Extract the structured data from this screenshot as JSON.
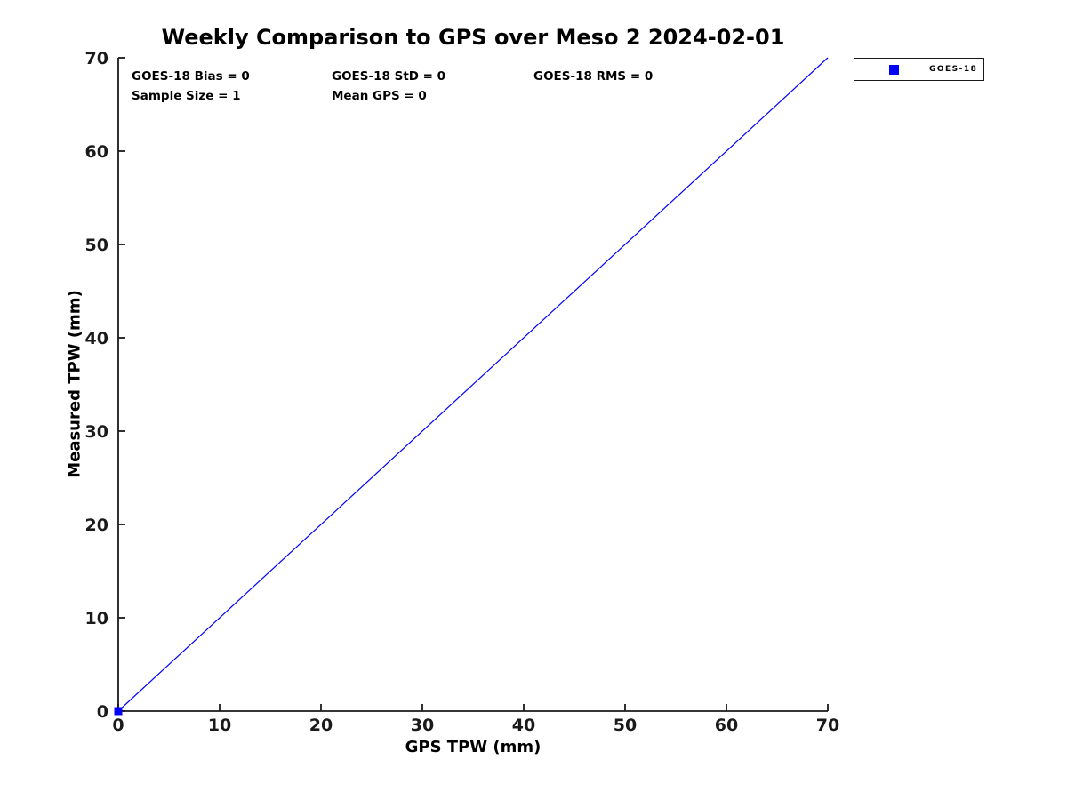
{
  "figure": {
    "title": "Weekly Comparison to GPS over Meso 2 2024-02-01"
  },
  "legend": {
    "entries": [
      {
        "label": "GOES-18",
        "marker": "square",
        "color": "#0000ff"
      }
    ],
    "position": "top-right-outside"
  },
  "chart_data": {
    "type": "line",
    "title": "Weekly Comparison to GPS over Meso 2 2024-02-01",
    "xlabel": "GPS TPW (mm)",
    "ylabel": "Measured TPW (mm)",
    "xlim": [
      0,
      70
    ],
    "ylim": [
      0,
      70
    ],
    "x_ticks": [
      0,
      10,
      20,
      30,
      40,
      50,
      60,
      70
    ],
    "y_ticks": [
      0,
      10,
      20,
      30,
      40,
      50,
      60,
      70
    ],
    "grid": false,
    "legend_position": "top-right-outside",
    "series": [
      {
        "name": "GOES-18 one-to-one line",
        "type": "line",
        "color": "#0000ff",
        "line_width": 1.2,
        "x": [
          0,
          70
        ],
        "y": [
          0,
          70
        ]
      },
      {
        "name": "GOES-18",
        "type": "scatter",
        "marker": "square",
        "color": "#0000ff",
        "marker_size": 9,
        "x": [
          0
        ],
        "y": [
          0
        ]
      }
    ],
    "annotations": [
      "GOES-18 Bias = 0",
      "GOES-18 StD = 0",
      "GOES-18 RMS = 0",
      "Sample Size = 1",
      "Mean GPS = 0"
    ]
  },
  "colors": {
    "accent": "#0000ff",
    "axis": "#1a1a1a",
    "background": "#ffffff"
  }
}
